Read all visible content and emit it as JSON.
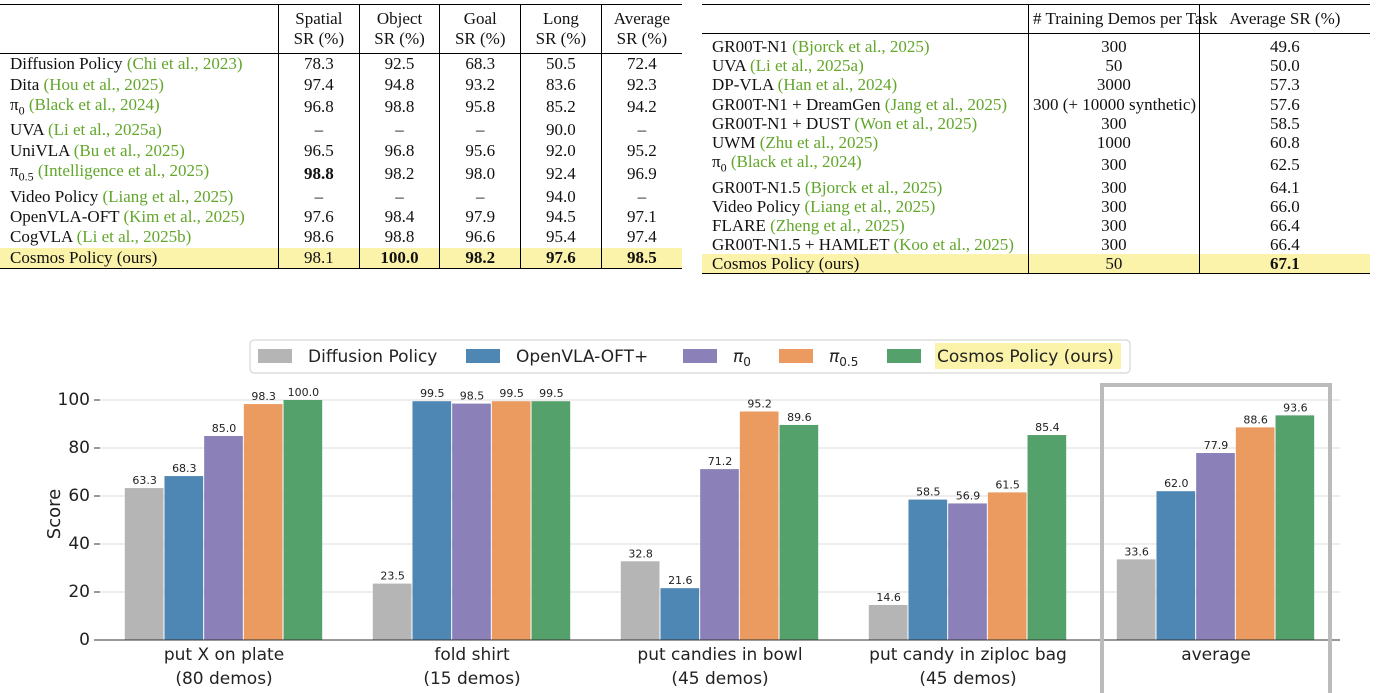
{
  "table1": {
    "columns": [
      [
        "Spatial",
        "SR (%)"
      ],
      [
        "Object",
        "SR (%)"
      ],
      [
        "Goal",
        "SR (%)"
      ],
      [
        "Long",
        "SR (%)"
      ],
      [
        "Average",
        "SR (%)"
      ]
    ],
    "rows": [
      {
        "method": "Diffusion Policy",
        "cite": "Chi et al., 2023",
        "cells": [
          "78.3",
          "92.5",
          "68.3",
          "50.5",
          "72.4"
        ]
      },
      {
        "method": "Dita",
        "cite": "Hou et al., 2025",
        "cells": [
          "97.4",
          "94.8",
          "93.2",
          "83.6",
          "92.3"
        ]
      },
      {
        "method": "π",
        "sub": "0",
        "cite": "Black et al., 2024",
        "cells": [
          "96.8",
          "98.8",
          "95.8",
          "85.2",
          "94.2"
        ]
      },
      {
        "method": "UVA",
        "cite": "Li et al., 2025a",
        "cells": [
          "–",
          "–",
          "–",
          "90.0",
          "–"
        ]
      },
      {
        "method": "UniVLA",
        "cite": "Bu et al., 2025",
        "cells": [
          "96.5",
          "96.8",
          "95.6",
          "92.0",
          "95.2"
        ]
      },
      {
        "method": "π",
        "sub": "0.5",
        "cite": "Intelligence et al., 2025",
        "cells": [
          "98.8",
          "98.2",
          "98.0",
          "92.4",
          "96.9"
        ],
        "bold": [
          0
        ]
      },
      {
        "method": "Video Policy",
        "cite": "Liang et al., 2025",
        "cells": [
          "–",
          "–",
          "–",
          "94.0",
          "–"
        ]
      },
      {
        "method": "OpenVLA-OFT",
        "cite": "Kim et al., 2025",
        "cells": [
          "97.6",
          "98.4",
          "97.9",
          "94.5",
          "97.1"
        ]
      },
      {
        "method": "CogVLA",
        "cite": "Li et al., 2025b",
        "cells": [
          "98.6",
          "98.8",
          "96.6",
          "95.4",
          "97.4"
        ]
      },
      {
        "method": "Cosmos Policy (ours)",
        "cells": [
          "98.1",
          "100.0",
          "98.2",
          "97.6",
          "98.5"
        ],
        "bold": [
          1,
          2,
          3,
          4
        ],
        "highlight": true
      }
    ]
  },
  "table2": {
    "columns": [
      [
        "# Training Demos per Task"
      ],
      [
        "Average SR (%)"
      ]
    ],
    "rows": [
      {
        "method": "GR00T-N1",
        "cite": "Bjorck et al., 2025",
        "cells": [
          "300",
          "49.6"
        ]
      },
      {
        "method": "UVA",
        "cite": "Li et al., 2025a",
        "cells": [
          "50",
          "50.0"
        ]
      },
      {
        "method": "DP-VLA",
        "cite": "Han et al., 2024",
        "cells": [
          "3000",
          "57.3"
        ]
      },
      {
        "method": "GR00T-N1 + DreamGen",
        "cite": "Jang et al., 2025",
        "cells": [
          "300 (+ 10000 synthetic)",
          "57.6"
        ]
      },
      {
        "method": "GR00T-N1 + DUST",
        "cite": "Won et al., 2025",
        "cells": [
          "300",
          "58.5"
        ]
      },
      {
        "method": "UWM",
        "cite": "Zhu et al., 2025",
        "cells": [
          "1000",
          "60.8"
        ]
      },
      {
        "method": "π",
        "sub": "0",
        "cite": "Black et al., 2024",
        "cells": [
          "300",
          "62.5"
        ]
      },
      {
        "method": "GR00T-N1.5",
        "cite": "Bjorck et al., 2025",
        "cells": [
          "300",
          "64.1"
        ]
      },
      {
        "method": "Video Policy",
        "cite": "Liang et al., 2025",
        "cells": [
          "300",
          "66.0"
        ]
      },
      {
        "method": "FLARE",
        "cite": "Zheng et al., 2025",
        "cells": [
          "300",
          "66.4"
        ]
      },
      {
        "method": "GR00T-N1.5 + HAMLET",
        "cite": "Koo et al., 2025",
        "cells": [
          "300",
          "66.4"
        ]
      },
      {
        "method": "Cosmos Policy (ours)",
        "cells": [
          "50",
          "67.1"
        ],
        "bold": [
          1
        ],
        "highlight": true
      }
    ]
  },
  "chart_data": {
    "type": "bar",
    "ylabel": "Score",
    "categories": [
      [
        "put X on plate",
        "(80 demos)"
      ],
      [
        "fold shirt",
        "(15 demos)"
      ],
      [
        "put candies in bowl",
        "(45 demos)"
      ],
      [
        "put candy in ziploc bag",
        "(45 demos)"
      ],
      [
        "average"
      ]
    ],
    "series": [
      {
        "name": "Diffusion Policy",
        "color": "#b5b5b5",
        "values": [
          63.3,
          23.5,
          32.8,
          14.6,
          33.6
        ],
        "value_labels": [
          "63.3",
          "23.5",
          "32.8",
          "14.6",
          "33.6"
        ]
      },
      {
        "name": "OpenVLA-OFT+",
        "color": "#4e87b4",
        "values": [
          68.3,
          99.5,
          21.6,
          58.5,
          62.0
        ],
        "value_labels": [
          "68.3",
          "99.5",
          "21.6",
          "58.5",
          "62.0"
        ]
      },
      {
        "name": "π",
        "sub": "0",
        "color": "#8b80b8",
        "values": [
          85.0,
          98.5,
          71.2,
          56.9,
          77.9
        ],
        "value_labels": [
          "85.0",
          "98.5",
          "71.2",
          "56.9",
          "77.9"
        ]
      },
      {
        "name": "π",
        "sub": "0.5",
        "color": "#eb9b60",
        "values": [
          98.3,
          99.5,
          95.2,
          61.5,
          88.6
        ],
        "value_labels": [
          "98.3",
          "99.5",
          "95.2",
          "61.5",
          "88.6"
        ]
      },
      {
        "name": "Cosmos Policy (ours)",
        "color": "#55a16b",
        "highlight": true,
        "values": [
          100.0,
          99.5,
          89.6,
          85.4,
          93.6
        ],
        "value_labels": [
          "100.0",
          "99.5",
          "89.6",
          "85.4",
          "93.6"
        ]
      }
    ],
    "ylim": [
      0,
      105
    ],
    "yticks": [
      0,
      20,
      40,
      60,
      80,
      100
    ],
    "grid": true,
    "legend": "top"
  }
}
